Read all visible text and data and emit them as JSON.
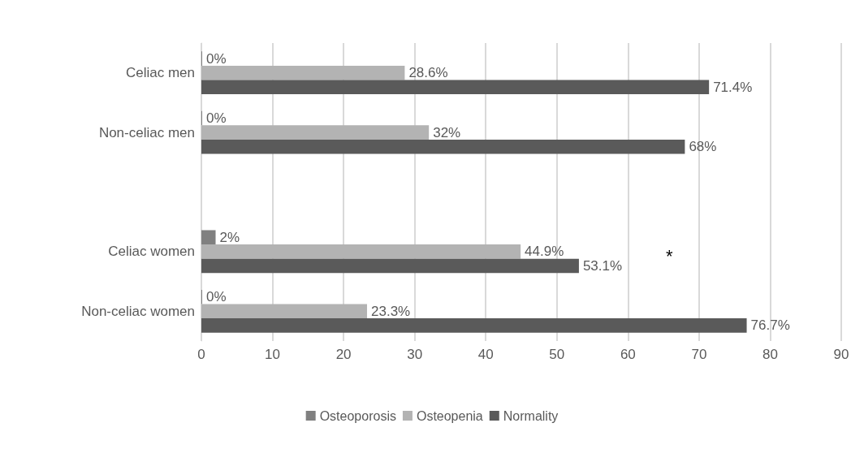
{
  "chart_data": {
    "type": "bar",
    "orientation": "horizontal",
    "categories": [
      "Celiac men",
      "Non-celiac men",
      null,
      "Celiac women",
      "Non-celiac women"
    ],
    "series": [
      {
        "name": "Osteoporosis",
        "color": "#808080",
        "values": [
          0,
          0,
          null,
          2,
          0
        ],
        "value_labels": [
          "0%",
          "0%",
          null,
          "2%",
          "0%"
        ]
      },
      {
        "name": "Osteopenia",
        "color": "#b3b3b3",
        "values": [
          28.6,
          32,
          null,
          44.9,
          23.3
        ],
        "value_labels": [
          "28.6%",
          "32%",
          null,
          "44.9%",
          "23.3%"
        ]
      },
      {
        "name": "Normality",
        "color": "#5a5a5a",
        "values": [
          71.4,
          68,
          null,
          53.1,
          76.7
        ],
        "value_labels": [
          "71.4%",
          "68%",
          null,
          "53.1%",
          "76.7%"
        ]
      }
    ],
    "xlim": [
      0,
      90
    ],
    "xticks": [
      0,
      10,
      20,
      30,
      40,
      50,
      60,
      70,
      80,
      90
    ],
    "grid": "x",
    "legend": "bottom",
    "annotations": [
      "*"
    ]
  }
}
